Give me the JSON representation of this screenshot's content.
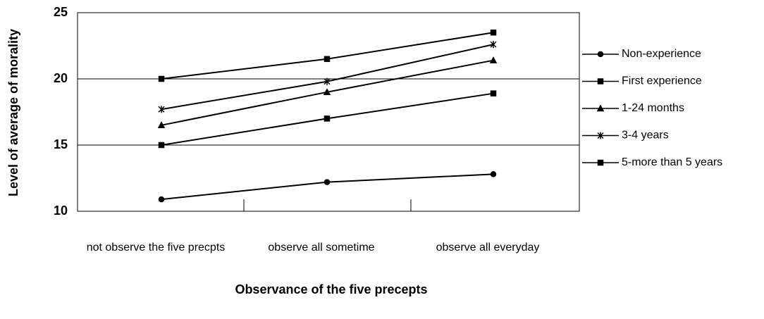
{
  "chart_data": {
    "type": "line",
    "x_label": "Observance of the five precepts",
    "y_label": "Level of average of morality",
    "categories": [
      "not observe the five precpts",
      "observe all sometime",
      "observe all everyday"
    ],
    "series": [
      {
        "name": "Non-experience",
        "color": "#000000",
        "marker": "circle",
        "values": [
          10.9,
          12.2,
          12.8
        ]
      },
      {
        "name": "First experience",
        "color": "#000000",
        "marker": "square",
        "values": [
          15,
          17,
          18.9
        ]
      },
      {
        "name": "1-24 months",
        "color": "#000000",
        "marker": "triangle",
        "values": [
          16.5,
          19,
          21.4
        ]
      },
      {
        "name": "3-4 years",
        "color": "#000000",
        "marker": "x",
        "values": [
          17.7,
          19.8,
          22.6
        ]
      },
      {
        "name": "5-more than 5 years",
        "color": "#000000",
        "marker": "square",
        "values": [
          20,
          21.5,
          23.5
        ]
      }
    ],
    "ylim": [
      10,
      25
    ],
    "yticks": [
      10,
      15,
      20,
      25
    ],
    "grid": true,
    "legend": "right"
  }
}
